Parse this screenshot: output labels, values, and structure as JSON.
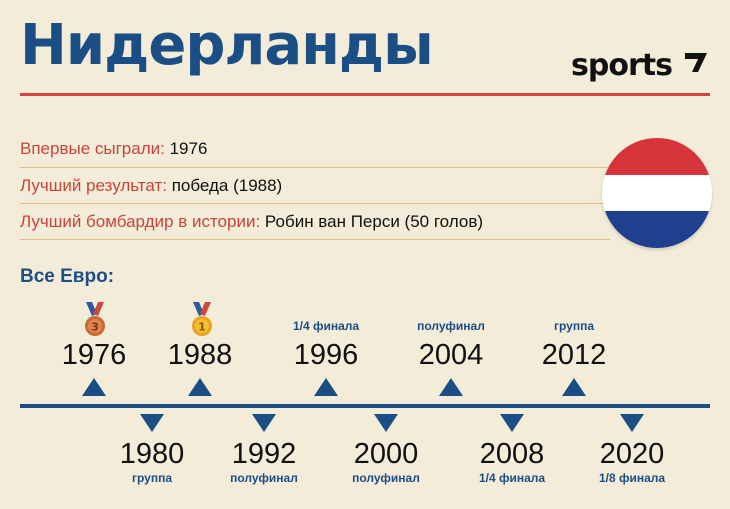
{
  "header": {
    "title": "Нидерланды",
    "logo_text": "sports",
    "logo_icon": "sports-slash-mark-icon"
  },
  "info": [
    {
      "label": "Впервые сыграли:",
      "value": " 1976"
    },
    {
      "label": "Лучший результат:",
      "value": " победа (1988)"
    },
    {
      "label": "Лучший бомбардир в истории:",
      "value": " Робин ван Перси (50 голов)"
    }
  ],
  "flag": {
    "colors": [
      "#d6343a",
      "#ffffff",
      "#213f8f"
    ]
  },
  "colors": {
    "accent": "#1c4e86",
    "red": "#d5433e",
    "background": "#f3ecd9"
  },
  "euro_label": "Все Евро:",
  "medals": [
    {
      "year": "1976",
      "number": "3",
      "icon": "bronze-medal-icon"
    },
    {
      "year": "1988",
      "number": "1",
      "icon": "gold-medal-icon"
    }
  ],
  "timeline": {
    "top": [
      {
        "year": "1976",
        "stage": ""
      },
      {
        "year": "1988",
        "stage": ""
      },
      {
        "year": "1996",
        "stage": "1/4 финала"
      },
      {
        "year": "2004",
        "stage": "полуфинал"
      },
      {
        "year": "2012",
        "stage": "группа"
      }
    ],
    "bottom": [
      {
        "year": "1980",
        "stage": "группа"
      },
      {
        "year": "1992",
        "stage": "полуфинал"
      },
      {
        "year": "2000",
        "stage": "полуфинал"
      },
      {
        "year": "2008",
        "stage": "1/4 финала"
      },
      {
        "year": "2020",
        "stage": "1/8 финала"
      }
    ]
  }
}
